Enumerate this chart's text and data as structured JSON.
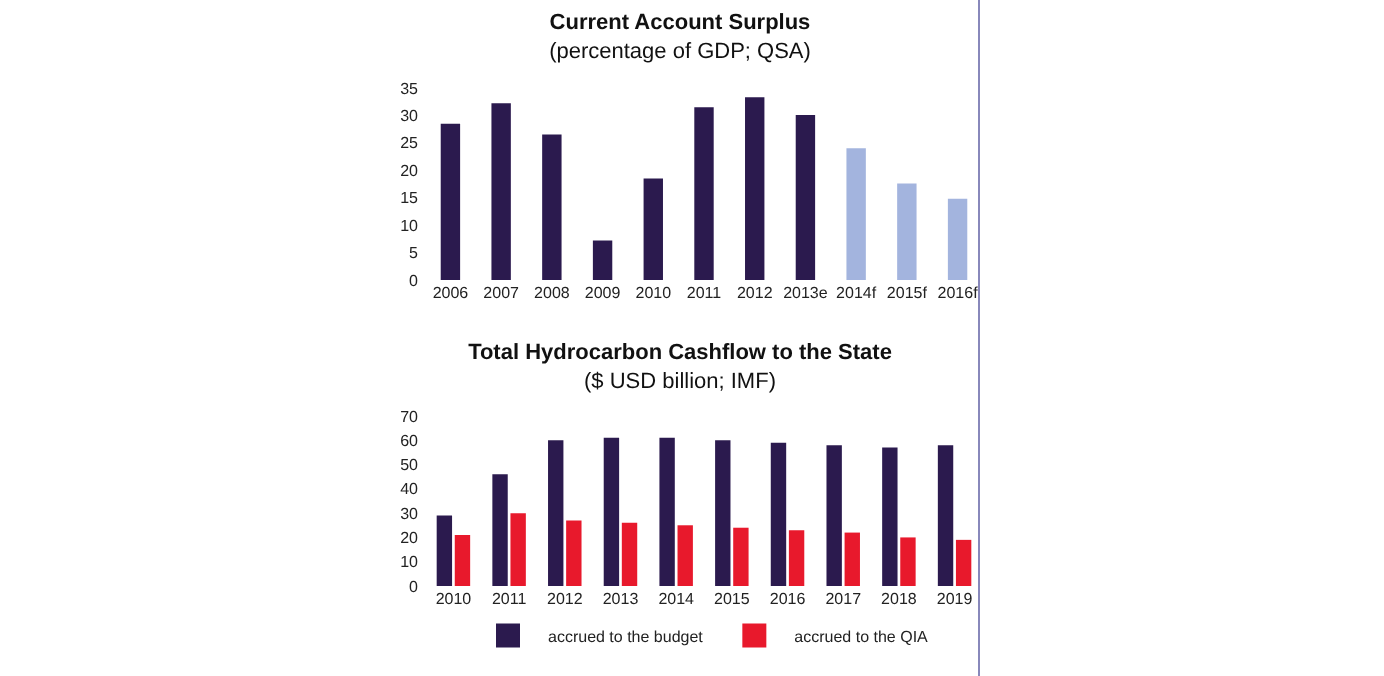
{
  "chart_data": [
    {
      "type": "bar",
      "title": "Current Account Surplus",
      "subtitle": "(percentage of GDP; QSA)",
      "categories": [
        "2006",
        "2007",
        "2008",
        "2009",
        "2010",
        "2011",
        "2012",
        "2013e",
        "2014f",
        "2015f",
        "2016f"
      ],
      "values": [
        28.5,
        32.2,
        26.5,
        7.2,
        18.5,
        31.5,
        33.3,
        30.1,
        24,
        17.6,
        14.8
      ],
      "colors": [
        "#2b1a4e",
        "#2b1a4e",
        "#2b1a4e",
        "#2b1a4e",
        "#2b1a4e",
        "#2b1a4e",
        "#2b1a4e",
        "#2b1a4e",
        "#a3b4de",
        "#a3b4de",
        "#a3b4de"
      ],
      "ylim": [
        0,
        35
      ],
      "yticks": [
        0,
        5,
        10,
        15,
        20,
        25,
        30,
        35
      ]
    },
    {
      "type": "bar",
      "title": "Total Hydrocarbon Cashflow to the State",
      "subtitle": "($ USD billion; IMF)",
      "categories": [
        "2010",
        "2011",
        "2012",
        "2013",
        "2014",
        "2015",
        "2016",
        "2017",
        "2018",
        "2019"
      ],
      "series": [
        {
          "name": "accrued to the budget",
          "color": "#2b1a4e",
          "values": [
            29,
            46,
            60,
            61,
            61,
            60,
            59,
            58,
            57,
            58
          ]
        },
        {
          "name": "accrued to the QIA",
          "color": "#e8192c",
          "values": [
            21,
            30,
            27,
            26,
            25,
            24,
            23,
            22,
            20,
            19
          ]
        }
      ],
      "ylim": [
        0,
        70
      ],
      "yticks": [
        0,
        10,
        20,
        30,
        40,
        50,
        60,
        70
      ],
      "legend": "bottom"
    }
  ]
}
